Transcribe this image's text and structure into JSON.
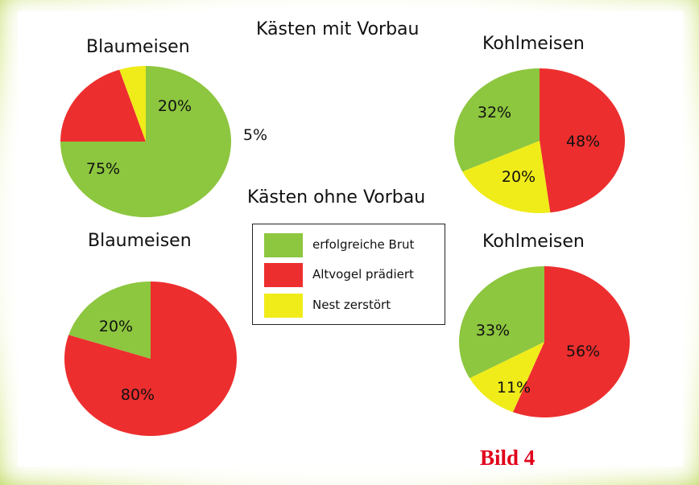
{
  "colors": {
    "erfolgreiche_brut": "#8dc63f",
    "altvogel_pradiert": "#ed2e2e",
    "nest_zerstort": "#f0ec1a"
  },
  "headings": {
    "mit_vorbau": "Kästen mit Vorbau",
    "ohne_vorbau": "Kästen ohne Vorbau"
  },
  "legend": {
    "items": [
      {
        "label": "erfolgreiche Brut",
        "color": "#8dc63f"
      },
      {
        "label": "Altvogel prädiert",
        "color": "#ed2e2e"
      },
      {
        "label": "Nest zerstört",
        "color": "#f0ec1a"
      }
    ]
  },
  "figure_label": "Bild 4",
  "chart_data": [
    {
      "type": "pie",
      "title": "Blaumeisen",
      "group": "Kästen mit Vorbau",
      "slices": [
        {
          "category": "erfolgreiche Brut",
          "value": 75,
          "label": "75%",
          "color": "#8dc63f"
        },
        {
          "category": "Altvogel prädiert",
          "value": 20,
          "label": "20%",
          "color": "#ed2e2e"
        },
        {
          "category": "Nest zerstört",
          "value": 5,
          "label": "5%",
          "color": "#f0ec1a"
        }
      ]
    },
    {
      "type": "pie",
      "title": "Kohlmeisen",
      "group": "Kästen mit Vorbau",
      "slices": [
        {
          "category": "erfolgreiche Brut",
          "value": 32,
          "label": "32%",
          "color": "#8dc63f"
        },
        {
          "category": "Altvogel prädiert",
          "value": 48,
          "label": "48%",
          "color": "#ed2e2e"
        },
        {
          "category": "Nest zerstört",
          "value": 20,
          "label": "20%",
          "color": "#f0ec1a"
        }
      ]
    },
    {
      "type": "pie",
      "title": "Blaumeisen",
      "group": "Kästen ohne Vorbau",
      "slices": [
        {
          "category": "erfolgreiche Brut",
          "value": 20,
          "label": "20%",
          "color": "#8dc63f"
        },
        {
          "category": "Altvogel prädiert",
          "value": 80,
          "label": "80%",
          "color": "#ed2e2e"
        }
      ]
    },
    {
      "type": "pie",
      "title": "Kohlmeisen",
      "group": "Kästen ohne Vorbau",
      "slices": [
        {
          "category": "erfolgreiche Brut",
          "value": 33,
          "label": "33%",
          "color": "#8dc63f"
        },
        {
          "category": "Altvogel prädiert",
          "value": 56,
          "label": "56%",
          "color": "#ed2e2e"
        },
        {
          "category": "Nest zerstört",
          "value": 11,
          "label": "11%",
          "color": "#f0ec1a"
        }
      ]
    }
  ]
}
